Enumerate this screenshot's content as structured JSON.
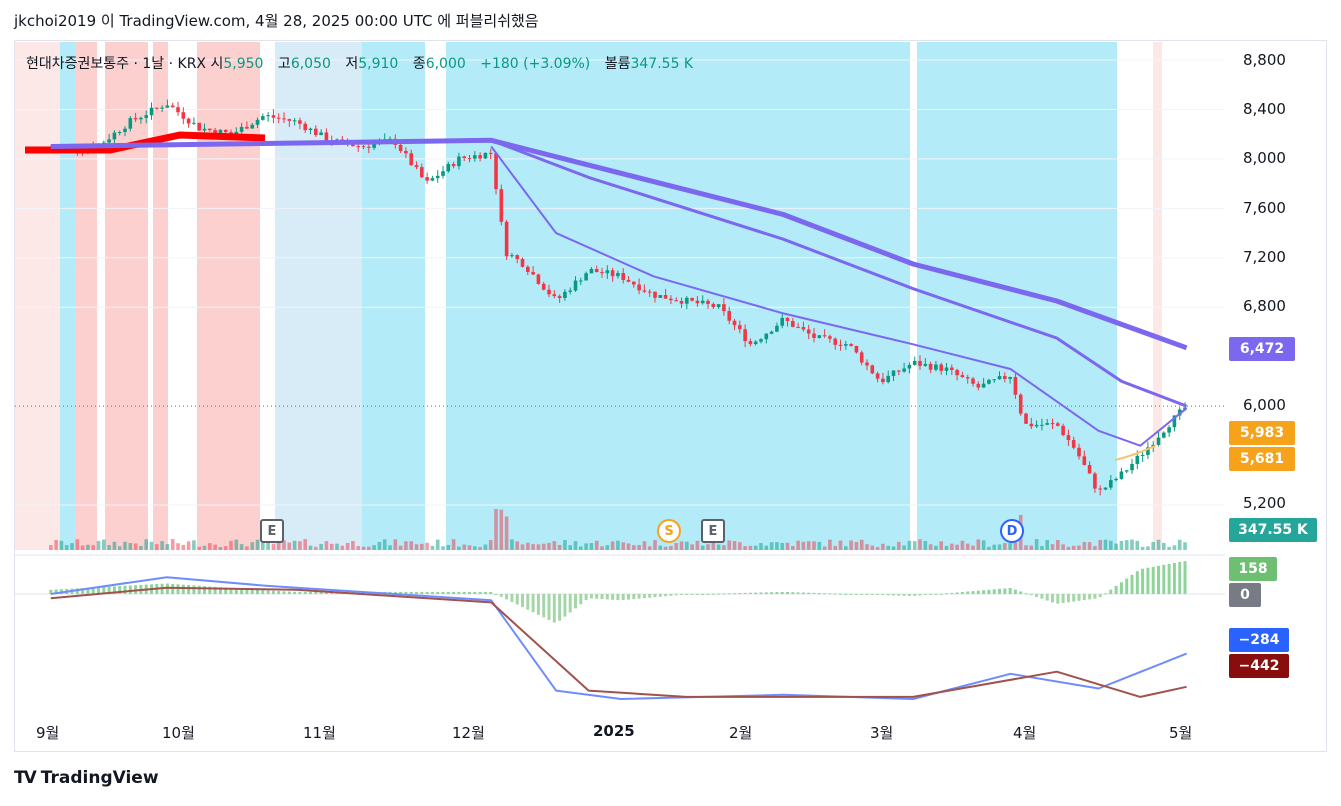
{
  "header": {
    "published": "jkchoi2019 이 TradingView.com, 4월 28, 2025 00:00 UTC 에 퍼블리쉬했음"
  },
  "legend": {
    "symbol": "현대차증권보통주 · 1날 · KRX",
    "open_label": "시",
    "open": "5,950",
    "high_label": "고",
    "high": "6,050",
    "low_label": "저",
    "low": "5,910",
    "close_label": "종",
    "close": "6,000",
    "change": "+180 (+3.09%)",
    "volume_label": "볼륨",
    "volume": "347.55 K"
  },
  "price_tags": {
    "ma_long": "6,472",
    "ma_long_color": "#7b68ee",
    "close_a": "5,983",
    "close_b": "5,681",
    "close_color": "#f7a21b",
    "volume": "347.55 K",
    "volume_color": "#26a69a",
    "macd_hist": "158",
    "macd_hist_color": "#6fbf73",
    "zero": "0",
    "zero_color": "#787b86",
    "macd": "−284",
    "macd_color": "#2962ff",
    "signal": "−442",
    "signal_color": "#880e0e"
  },
  "events": {
    "earnings": "E",
    "split": "S",
    "dividend": "D"
  },
  "brand": {
    "name": "TradingView",
    "logo": "TV"
  },
  "chart_data": {
    "type": "candlestick",
    "y_ticks": [
      "8,800",
      "8,400",
      "8,000",
      "7,600",
      "7,200",
      "6,800",
      "6,000",
      "5,200"
    ],
    "x_ticks": [
      "9월",
      "10월",
      "11월",
      "12월",
      "2025",
      "2월",
      "3월",
      "4월",
      "5월"
    ],
    "ylim": [
      5050,
      8950
    ],
    "last_price": 6000,
    "price_path": [
      [
        "2024-08-26",
        8080
      ],
      [
        "2024-09-05",
        8100
      ],
      [
        "2024-09-12",
        8300
      ],
      [
        "2024-09-20",
        8450
      ],
      [
        "2024-09-27",
        8250
      ],
      [
        "2024-10-04",
        8200
      ],
      [
        "2024-10-11",
        8350
      ],
      [
        "2024-10-18",
        8300
      ],
      [
        "2024-10-25",
        8150
      ],
      [
        "2024-11-01",
        8100
      ],
      [
        "2024-11-08",
        8150
      ],
      [
        "2024-11-15",
        7800
      ],
      [
        "2024-11-22",
        8000
      ],
      [
        "2024-11-29",
        8050
      ],
      [
        "2024-12-02",
        7250
      ],
      [
        "2024-12-06",
        7150
      ],
      [
        "2024-12-13",
        6850
      ],
      [
        "2024-12-20",
        7100
      ],
      [
        "2024-12-27",
        7050
      ],
      [
        "2025-01-03",
        6900
      ],
      [
        "2025-01-10",
        6850
      ],
      [
        "2025-01-17",
        6800
      ],
      [
        "2025-01-24",
        6500
      ],
      [
        "2025-01-31",
        6700
      ],
      [
        "2025-02-07",
        6550
      ],
      [
        "2025-02-14",
        6500
      ],
      [
        "2025-02-21",
        6200
      ],
      [
        "2025-02-28",
        6350
      ],
      [
        "2025-03-07",
        6300
      ],
      [
        "2025-03-14",
        6150
      ],
      [
        "2025-03-21",
        6250
      ],
      [
        "2025-03-24",
        5850
      ],
      [
        "2025-03-31",
        5850
      ],
      [
        "2025-04-04",
        5650
      ],
      [
        "2025-04-09",
        5300
      ],
      [
        "2025-04-14",
        5450
      ],
      [
        "2025-04-18",
        5600
      ],
      [
        "2025-04-24",
        5850
      ],
      [
        "2025-04-28",
        6000
      ]
    ],
    "ma_long": [
      [
        "2024-08-26",
        8100
      ],
      [
        "2024-11-29",
        8150
      ],
      [
        "2024-12-20",
        7950
      ],
      [
        "2025-01-31",
        7550
      ],
      [
        "2025-02-28",
        7150
      ],
      [
        "2025-03-31",
        6850
      ],
      [
        "2025-04-28",
        6472
      ]
    ],
    "ma_mid": [
      [
        "2024-11-29",
        8150
      ],
      [
        "2024-12-20",
        7850
      ],
      [
        "2025-01-31",
        7350
      ],
      [
        "2025-02-28",
        6950
      ],
      [
        "2025-03-31",
        6550
      ],
      [
        "2025-04-14",
        6200
      ],
      [
        "2025-04-28",
        6000
      ]
    ],
    "ma_short": [
      [
        "2024-11-29",
        8100
      ],
      [
        "2024-12-13",
        7400
      ],
      [
        "2025-01-03",
        7050
      ],
      [
        "2025-01-31",
        6750
      ],
      [
        "2025-02-28",
        6500
      ],
      [
        "2025-03-21",
        6300
      ],
      [
        "2025-04-09",
        5800
      ],
      [
        "2025-04-18",
        5680
      ],
      [
        "2025-04-28",
        5983
      ]
    ],
    "macd": [
      [
        "2024-08-26",
        0
      ],
      [
        "2024-09-20",
        80
      ],
      [
        "2024-10-11",
        40
      ],
      [
        "2024-11-08",
        0
      ],
      [
        "2024-11-29",
        -30
      ],
      [
        "2024-12-13",
        -460
      ],
      [
        "2024-12-27",
        -500
      ],
      [
        "2025-01-31",
        -480
      ],
      [
        "2025-02-28",
        -500
      ],
      [
        "2025-03-21",
        -380
      ],
      [
        "2025-04-09",
        -450
      ],
      [
        "2025-04-28",
        -284
      ]
    ],
    "signal": [
      [
        "2024-08-26",
        -20
      ],
      [
        "2024-09-20",
        30
      ],
      [
        "2024-10-18",
        20
      ],
      [
        "2024-11-29",
        -40
      ],
      [
        "2024-12-20",
        -460
      ],
      [
        "2025-01-10",
        -490
      ],
      [
        "2025-02-28",
        -490
      ],
      [
        "2025-03-31",
        -370
      ],
      [
        "2025-04-18",
        -490
      ],
      [
        "2025-04-28",
        -442
      ]
    ],
    "macd_hist_last": 158
  }
}
